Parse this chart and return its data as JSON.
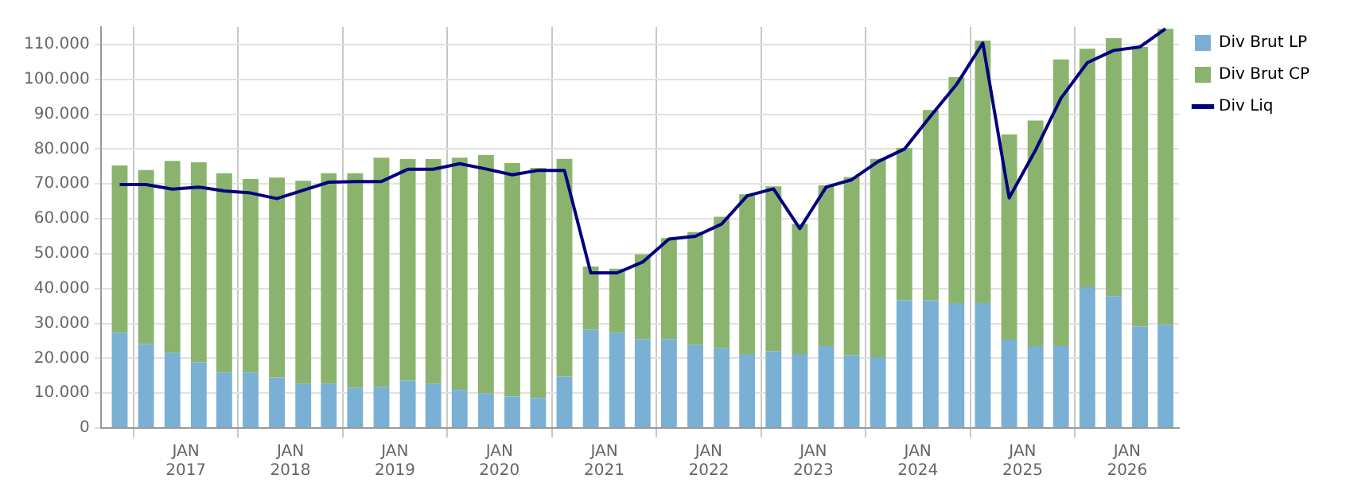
{
  "chart_data": {
    "type": "bar",
    "stacked": true,
    "x": [
      "2016-05-15",
      "2016-08-15",
      "2016-11-15",
      "2017-02-15",
      "2017-05-15",
      "2017-08-15",
      "2017-11-15",
      "2018-02-15",
      "2018-05-15",
      "2018-08-15",
      "2018-11-15",
      "2019-02-15",
      "2019-05-15",
      "2019-08-15",
      "2019-11-15",
      "2020-02-15",
      "2020-05-15",
      "2020-08-15",
      "2020-11-15",
      "2021-02-15",
      "2021-05-15",
      "2021-08-15",
      "2021-11-15",
      "2022-02-15",
      "2022-05-15",
      "2022-08-15",
      "2022-11-15",
      "2023-02-15",
      "2023-05-15",
      "2023-08-15",
      "2023-11-15",
      "2024-02-15",
      "2024-05-15",
      "2024-08-15",
      "2024-11-15",
      "2025-02-15",
      "2025-05-15",
      "2025-08-15",
      "2025-11-15",
      "2026-02-15",
      "2026-05-15"
    ],
    "series": [
      {
        "name": "Div Brut LP",
        "color": "#7ab0d4",
        "values": [
          27300,
          24100,
          21500,
          18800,
          15900,
          15900,
          14500,
          12700,
          12700,
          11500,
          11800,
          13600,
          12700,
          10900,
          10000,
          9000,
          8600,
          14700,
          28200,
          27300,
          25500,
          25500,
          23800,
          22900,
          21200,
          22000,
          21200,
          23500,
          20900,
          20300,
          36600,
          36600,
          35800,
          35800,
          25300,
          23500,
          23500,
          40400,
          37800,
          29100,
          29600
        ]
      },
      {
        "name": "Div Brut CP",
        "color": "#8ab46e",
        "values": [
          48000,
          49900,
          55100,
          57400,
          57200,
          55500,
          57300,
          58200,
          60400,
          61600,
          65700,
          63500,
          64400,
          66600,
          68300,
          67000,
          66000,
          62500,
          18100,
          18400,
          24300,
          29000,
          32400,
          37700,
          45800,
          47300,
          37300,
          46100,
          51100,
          56900,
          43700,
          54600,
          64800,
          75300,
          58900,
          64700,
          82200,
          68400,
          74000,
          80200,
          84900
        ]
      },
      {
        "name": "Div Liq",
        "type": "line",
        "color": "#000080",
        "values": [
          69800,
          69800,
          68500,
          69100,
          68000,
          67400,
          65800,
          68200,
          70500,
          70700,
          70700,
          74200,
          74200,
          75800,
          74300,
          72600,
          73900,
          73900,
          44500,
          44500,
          47600,
          54200,
          55000,
          58500,
          66600,
          68600,
          57200,
          69100,
          71200,
          76400,
          80000,
          89500,
          98500,
          110400,
          66000,
          79700,
          94600,
          104800,
          108300,
          109300,
          114500
        ]
      }
    ],
    "xlim": [
      "2016-03-10",
      "2026-07-01"
    ],
    "xticks": [
      {
        "value": "2017-01-01",
        "label": "JAN\n2017"
      },
      {
        "value": "2018-01-01",
        "label": "JAN\n2018"
      },
      {
        "value": "2019-01-01",
        "label": "JAN\n2019"
      },
      {
        "value": "2020-01-01",
        "label": "JAN\n2020"
      },
      {
        "value": "2021-01-01",
        "label": "JAN\n2021"
      },
      {
        "value": "2022-01-01",
        "label": "JAN\n2022"
      },
      {
        "value": "2023-01-01",
        "label": "JAN\n2023"
      },
      {
        "value": "2024-01-01",
        "label": "JAN\n2024"
      },
      {
        "value": "2025-01-01",
        "label": "JAN\n2025"
      },
      {
        "value": "2026-01-01",
        "label": "JAN\n2026"
      }
    ],
    "ylim": [
      0,
      115000
    ],
    "yticks": [
      {
        "value": 0,
        "label": "0"
      },
      {
        "value": 10000,
        "label": "10.000"
      },
      {
        "value": 20000,
        "label": "20.000"
      },
      {
        "value": 30000,
        "label": "30.000"
      },
      {
        "value": 40000,
        "label": "40.000"
      },
      {
        "value": 50000,
        "label": "50.000"
      },
      {
        "value": 60000,
        "label": "60.000"
      },
      {
        "value": 70000,
        "label": "70.000"
      },
      {
        "value": 80000,
        "label": "80.000"
      },
      {
        "value": 90000,
        "label": "90.000"
      },
      {
        "value": 100000,
        "label": "100.000"
      },
      {
        "value": 110000,
        "label": "110.000"
      }
    ],
    "grid": true,
    "legend": "top right",
    "marker": "none",
    "line_style": "solid"
  }
}
